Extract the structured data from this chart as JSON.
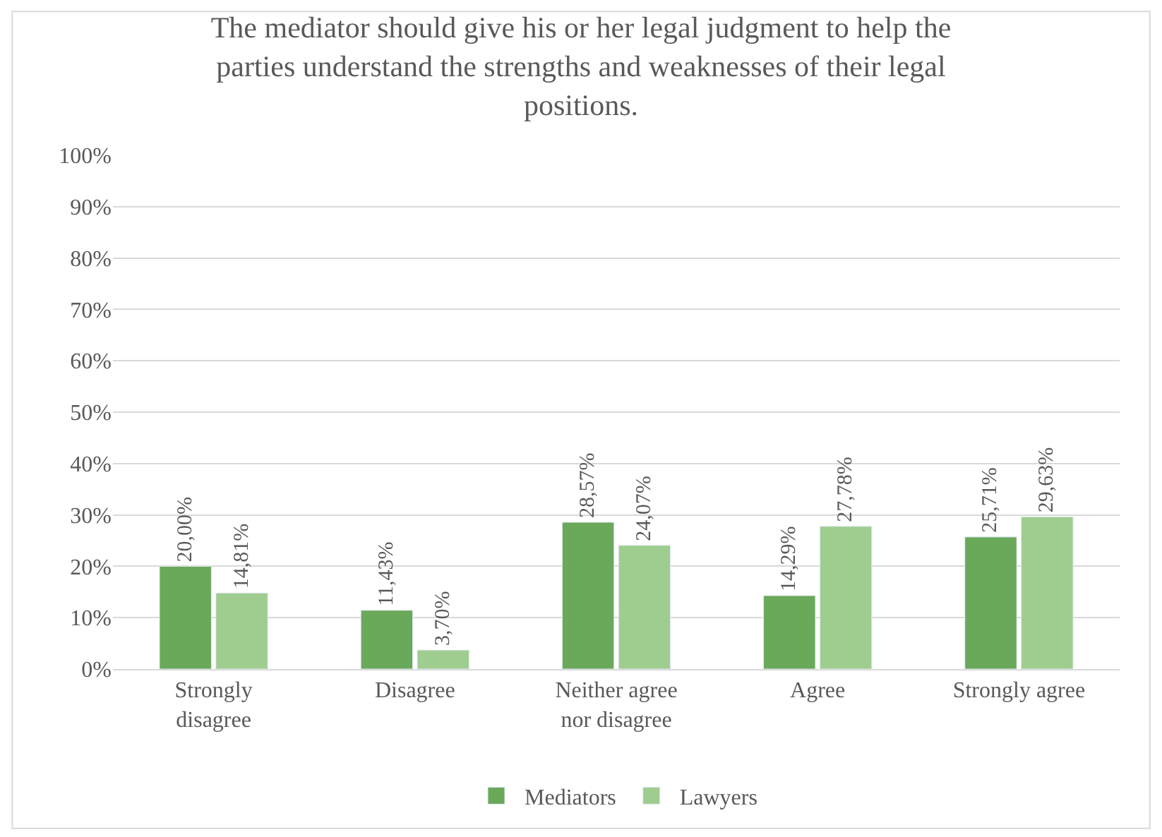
{
  "chart_data": {
    "type": "bar",
    "title": "The mediator should give his or her legal judgment to help the parties understand the strengths and weaknesses of their legal positions.",
    "categories": [
      "Strongly disagree",
      "Disagree",
      "Neither agree nor disagree",
      "Agree",
      "Strongly agree"
    ],
    "series": [
      {
        "name": "Mediators",
        "color": "#6aa85a",
        "values": [
          20.0,
          11.43,
          28.57,
          14.29,
          25.71
        ],
        "value_labels": [
          "20,00%",
          "11,43%",
          "28,57%",
          "14,29%",
          "25,71%"
        ]
      },
      {
        "name": "Lawyers",
        "color": "#9fcd90",
        "values": [
          14.81,
          3.7,
          24.07,
          27.78,
          29.63
        ],
        "value_labels": [
          "14,81%",
          "3,70%",
          "24,07%",
          "27,78%",
          "29,63%"
        ]
      }
    ],
    "ylim": [
      0,
      100
    ],
    "yticks": [
      {
        "value": 0,
        "label": "0%"
      },
      {
        "value": 10,
        "label": "10%"
      },
      {
        "value": 20,
        "label": "20%"
      },
      {
        "value": 30,
        "label": "30%"
      },
      {
        "value": 40,
        "label": "40%"
      },
      {
        "value": 50,
        "label": "50%"
      },
      {
        "value": 60,
        "label": "60%"
      },
      {
        "value": 70,
        "label": "70%"
      },
      {
        "value": 80,
        "label": "80%"
      },
      {
        "value": 90,
        "label": "90%"
      },
      {
        "value": 100,
        "label": "100%"
      }
    ],
    "grid": "y",
    "legend": "bottom"
  }
}
